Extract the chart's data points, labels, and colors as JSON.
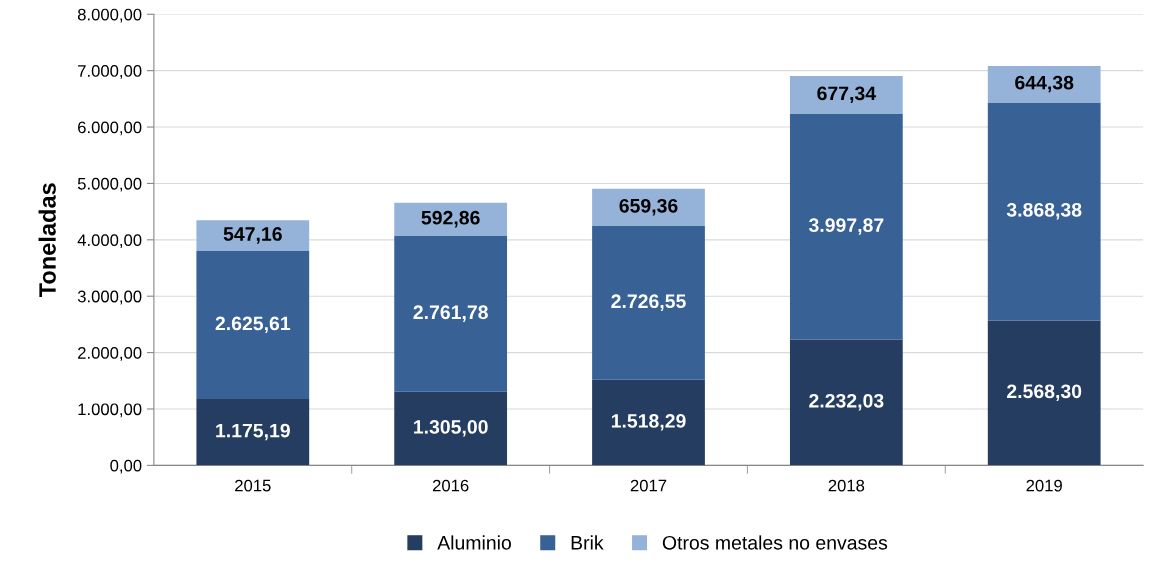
{
  "chart_data": {
    "type": "bar",
    "stacked": true,
    "ylabel": "Toneladas",
    "categories": [
      "2015",
      "2016",
      "2017",
      "2018",
      "2019"
    ],
    "series": [
      {
        "name": "Aluminio",
        "color": "#243d60",
        "values": [
          1175.19,
          1305.0,
          1518.29,
          2232.03,
          2568.3
        ],
        "value_labels": [
          "1.175,19",
          "1.305,00",
          "1.518,29",
          "2.232,03",
          "2.568,30"
        ]
      },
      {
        "name": "Brik",
        "color": "#386195",
        "values": [
          2625.61,
          2761.78,
          2726.55,
          3997.87,
          3868.38
        ],
        "value_labels": [
          "2.625,61",
          "2.761,78",
          "2.726,55",
          "3.997,87",
          "3.868,38"
        ]
      },
      {
        "name": "Otros metales no envases",
        "color": "#95b3d9",
        "values": [
          547.16,
          592.86,
          659.36,
          677.34,
          644.38
        ],
        "value_labels": [
          "547,16",
          "592,86",
          "659,36",
          "677,34",
          "644,38"
        ]
      }
    ],
    "ylim": [
      0,
      8000
    ],
    "yticks": [
      {
        "value": 0,
        "label": "0,00"
      },
      {
        "value": 1000,
        "label": "1.000,00"
      },
      {
        "value": 2000,
        "label": "2.000,00"
      },
      {
        "value": 3000,
        "label": "3.000,00"
      },
      {
        "value": 4000,
        "label": "4.000,00"
      },
      {
        "value": 5000,
        "label": "5.000,00"
      },
      {
        "value": 6000,
        "label": "6.000,00"
      },
      {
        "value": 7000,
        "label": "7.000,00"
      },
      {
        "value": 8000,
        "label": "8.000,00"
      }
    ],
    "grid": "y",
    "legend": "bottom"
  }
}
